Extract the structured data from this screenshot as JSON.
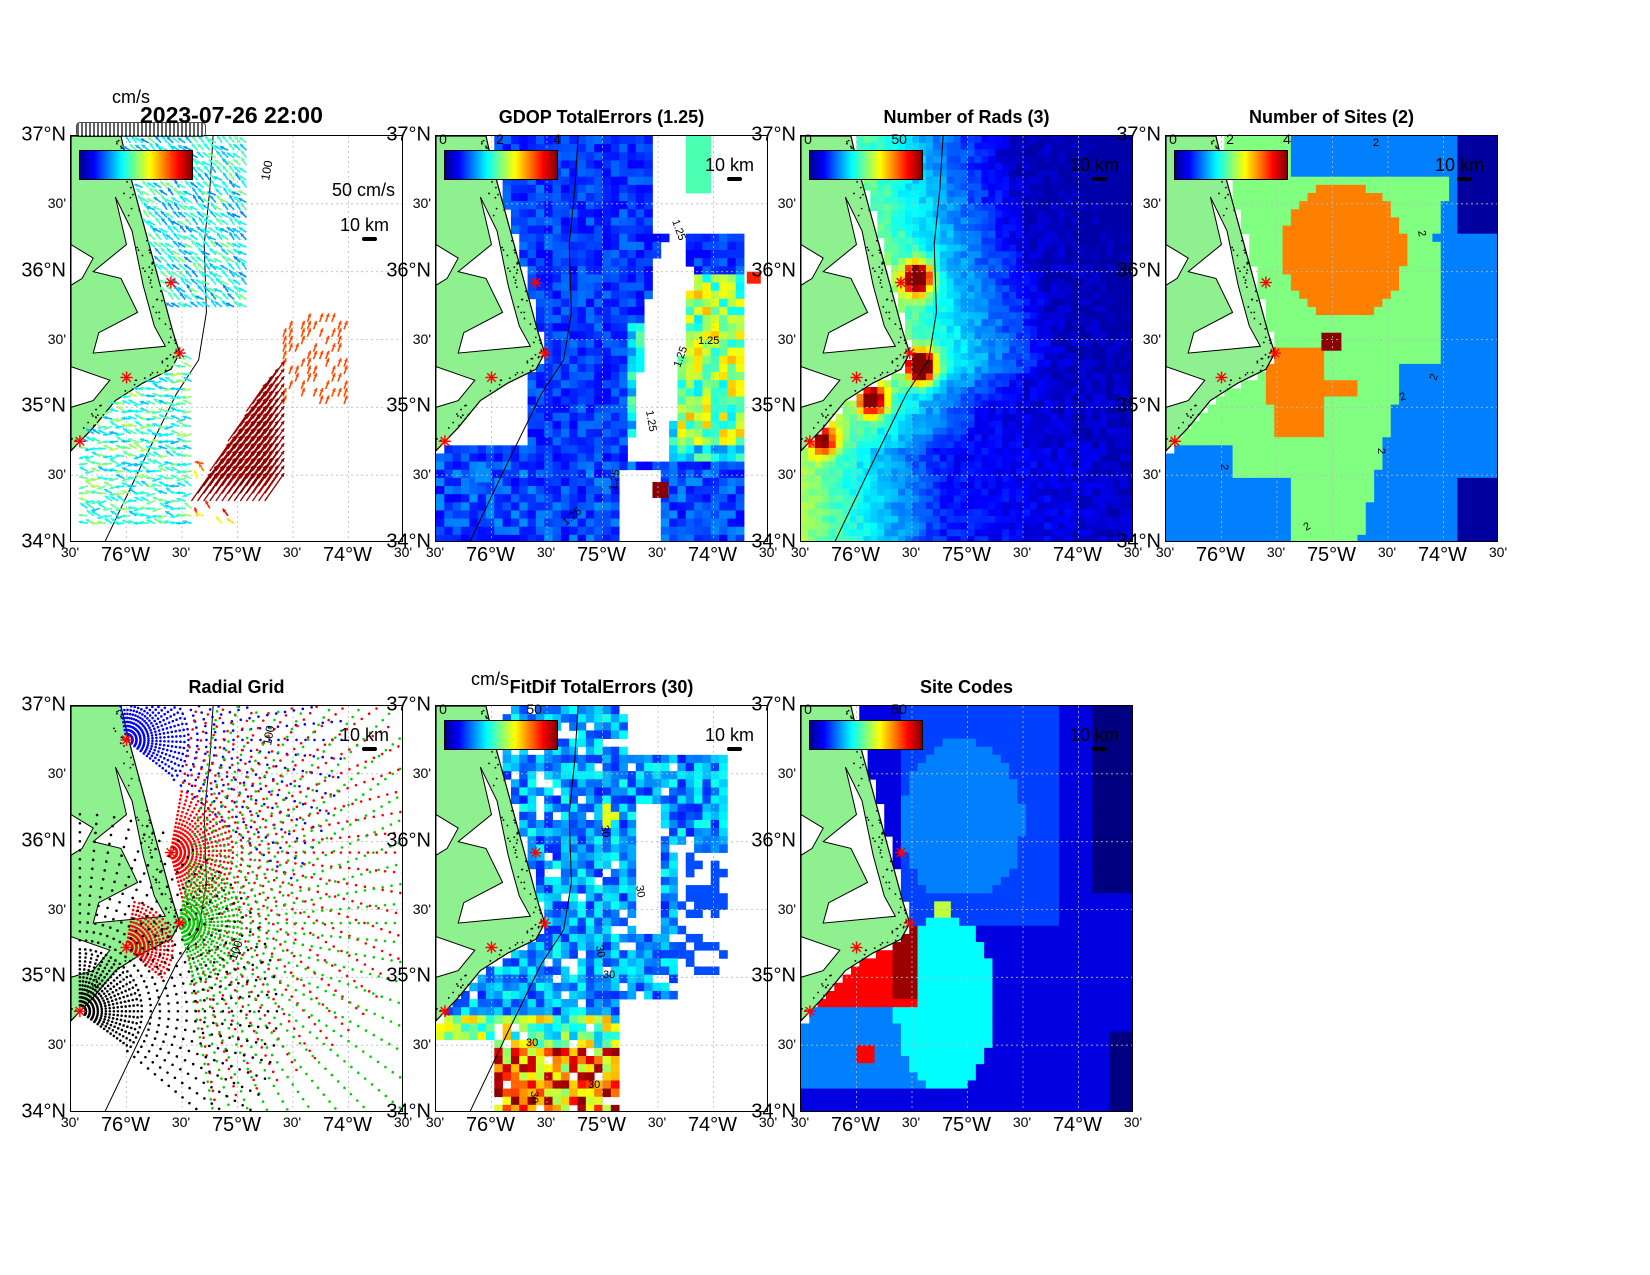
{
  "figure": {
    "timestamp": "2023-07-26 22:00",
    "colors": {
      "land": "#8ef08e",
      "coast": "#000000",
      "site_marker": "#ff0000",
      "grid": "#bbbbbb"
    },
    "site_icon": "asterisk-icon"
  },
  "axes": {
    "lat_labels": [
      "37°N",
      "30'",
      "36°N",
      "30'",
      "35°N",
      "30'",
      "34°N"
    ],
    "lon_labels": [
      "30'",
      "76°W",
      "30'",
      "75°W",
      "30'",
      "74°W",
      "30'"
    ]
  },
  "panels": [
    {
      "id": "total-currents",
      "title": "",
      "colorbar_unit": "cm/s",
      "colorbar_ticks": [],
      "scale_label": "10 km",
      "vector_scale_label": "50 cm/s",
      "isobath_label": "100"
    },
    {
      "id": "gdop-total-errors",
      "title": "GDOP TotalErrors (1.25)",
      "colorbar_ticks": [
        "0",
        "2",
        "4"
      ],
      "scale_label": "10 km",
      "contour_label": "1.25"
    },
    {
      "id": "number-of-rads",
      "title": "Number of Rads (3)",
      "colorbar_ticks": [
        "0",
        "50"
      ],
      "scale_label": "10 km"
    },
    {
      "id": "number-of-sites",
      "title": "Number of Sites (2)",
      "colorbar_ticks": [
        "0",
        "2",
        "4"
      ],
      "scale_label": "10 km",
      "contour_label": "2"
    },
    {
      "id": "radial-grid",
      "title": "Radial Grid",
      "scale_label": "10 km",
      "isobath_label": "100",
      "site_colors": [
        "#0000ff",
        "#ff0000",
        "#00d000",
        "#ff0000",
        "#000000"
      ]
    },
    {
      "id": "fitdif-total-errors",
      "title": "FitDif TotalErrors (30)",
      "colorbar_unit": "cm/s",
      "colorbar_ticks": [
        "0",
        "50"
      ],
      "scale_label": "10 km",
      "contour_label": "30"
    },
    {
      "id": "site-codes",
      "title": "Site Codes",
      "colorbar_ticks": [
        "0",
        "50"
      ],
      "scale_label": "10 km"
    }
  ]
}
